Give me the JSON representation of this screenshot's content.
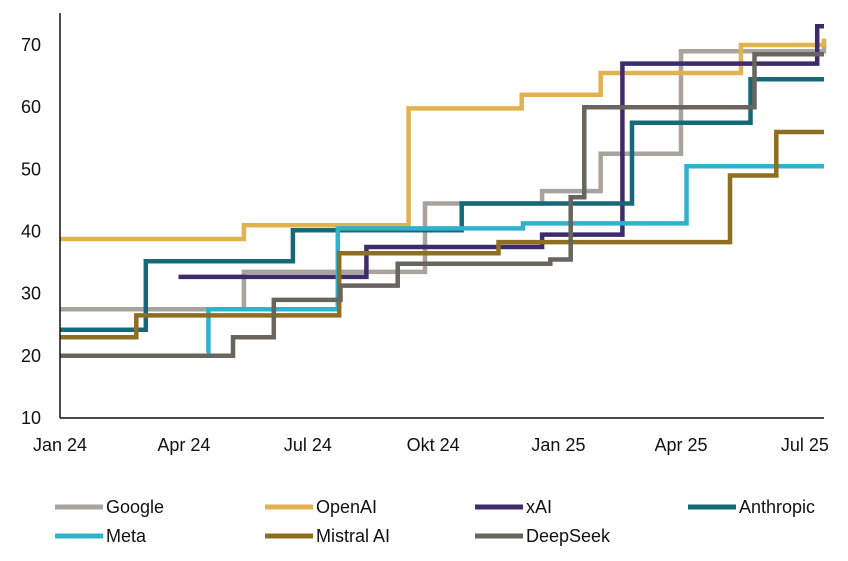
{
  "chart_data": {
    "type": "line",
    "title": "",
    "xlabel": "",
    "ylabel": "",
    "x_range": [
      "2024-01-01",
      "2025-07-15"
    ],
    "ylim": [
      10,
      75
    ],
    "y_ticks": [
      10,
      20,
      30,
      40,
      50,
      60,
      70
    ],
    "x_ticks": [
      {
        "label": "Jan 24",
        "date": "2024-01-01"
      },
      {
        "label": "Apr 24",
        "date": "2024-04-01"
      },
      {
        "label": "Jul 24",
        "date": "2024-07-01"
      },
      {
        "label": "Okt 24",
        "date": "2024-10-01"
      },
      {
        "label": "Jan 25",
        "date": "2025-01-01"
      },
      {
        "label": "Apr 25",
        "date": "2025-04-01"
      },
      {
        "label": "Jul 25",
        "date": "2025-07-01"
      }
    ],
    "grid": false,
    "legend_position": "bottom",
    "step_style": "post",
    "series": [
      {
        "name": "Google",
        "color": "#a8a49c",
        "points": [
          [
            "2024-01-01",
            27.5
          ],
          [
            "2024-05-15",
            33.5
          ],
          [
            "2024-09-25",
            44.5
          ],
          [
            "2024-12-20",
            46.5
          ],
          [
            "2025-02-01",
            52.5
          ],
          [
            "2025-04-01",
            69
          ],
          [
            "2025-07-15",
            71
          ]
        ]
      },
      {
        "name": "OpenAI",
        "color": "#e2b24f",
        "points": [
          [
            "2024-01-01",
            38.8
          ],
          [
            "2024-05-15",
            41
          ],
          [
            "2024-09-13",
            59.8
          ],
          [
            "2024-12-05",
            62
          ],
          [
            "2025-02-01",
            65.5
          ],
          [
            "2025-05-15",
            70
          ],
          [
            "2025-07-15",
            71
          ]
        ]
      },
      {
        "name": "xAI",
        "color": "#3d2b6b",
        "points": [
          [
            "2024-03-28",
            32.7
          ],
          [
            "2024-08-13",
            37.5
          ],
          [
            "2024-12-20",
            39.5
          ],
          [
            "2025-02-17",
            67
          ],
          [
            "2025-07-10",
            73
          ],
          [
            "2025-07-15",
            73
          ]
        ]
      },
      {
        "name": "Anthropic",
        "color": "#17697a",
        "points": [
          [
            "2024-01-01",
            24.2
          ],
          [
            "2024-03-04",
            35.2
          ],
          [
            "2024-06-20",
            40.2
          ],
          [
            "2024-10-22",
            44.5
          ],
          [
            "2025-02-24",
            57.5
          ],
          [
            "2025-05-22",
            64.5
          ],
          [
            "2025-07-15",
            64.5
          ]
        ]
      },
      {
        "name": "Meta",
        "color": "#30b2cf",
        "points": [
          [
            "2024-04-18",
            20.5
          ],
          [
            "2024-04-19",
            27.5
          ],
          [
            "2024-07-23",
            40.5
          ],
          [
            "2024-12-06",
            41.3
          ],
          [
            "2025-04-05",
            50.5
          ],
          [
            "2025-07-15",
            50.5
          ]
        ]
      },
      {
        "name": "Mistral AI",
        "color": "#8f6e22",
        "points": [
          [
            "2024-01-01",
            23
          ],
          [
            "2024-02-26",
            26.5
          ],
          [
            "2024-07-24",
            36.5
          ],
          [
            "2024-11-18",
            38.3
          ],
          [
            "2025-05-07",
            49
          ],
          [
            "2025-06-10",
            56
          ],
          [
            "2025-07-15",
            56
          ]
        ]
      },
      {
        "name": "DeepSeek",
        "color": "#67655e",
        "points": [
          [
            "2024-01-01",
            20
          ],
          [
            "2024-05-07",
            23
          ],
          [
            "2024-06-06",
            29
          ],
          [
            "2024-07-25",
            31.3
          ],
          [
            "2024-09-05",
            34.8
          ],
          [
            "2024-12-26",
            35.5
          ],
          [
            "2025-01-10",
            45.5
          ],
          [
            "2025-01-20",
            60
          ],
          [
            "2025-05-25",
            68.5
          ],
          [
            "2025-07-15",
            68.5
          ]
        ]
      }
    ],
    "legend": [
      {
        "label": "Google",
        "color": "#a8a49c"
      },
      {
        "label": "OpenAI",
        "color": "#e2b24f"
      },
      {
        "label": "xAI",
        "color": "#3d2b6b"
      },
      {
        "label": "Anthropic",
        "color": "#17697a"
      },
      {
        "label": "Meta",
        "color": "#30b2cf"
      },
      {
        "label": "Mistral AI",
        "color": "#8f6e22"
      },
      {
        "label": "DeepSeek",
        "color": "#67655e"
      }
    ]
  }
}
